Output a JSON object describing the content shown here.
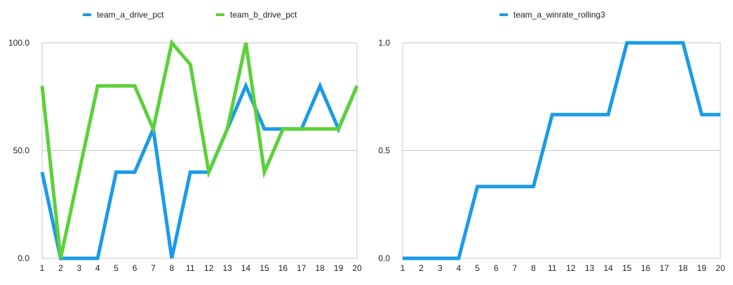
{
  "chart_data": [
    {
      "type": "line",
      "categories": [
        "1",
        "2",
        "3",
        "4",
        "5",
        "6",
        "7",
        "8",
        "11",
        "12",
        "13",
        "14",
        "15",
        "16",
        "17",
        "18",
        "19",
        "20"
      ],
      "ylim": [
        0,
        100
      ],
      "yticks": [
        "0.0",
        "50.0",
        "100.0"
      ],
      "grid": true,
      "legend_position": "top",
      "series": [
        {
          "name": "team_a_drive_pct",
          "color": "#1a9be8",
          "values": [
            40,
            0,
            0,
            0,
            40,
            40,
            60,
            0,
            40,
            40,
            60,
            80,
            60,
            60,
            60,
            80,
            60,
            80
          ]
        },
        {
          "name": "team_b_drive_pct",
          "color": "#5bd13a",
          "values": [
            80,
            0,
            40,
            80,
            80,
            80,
            60,
            100,
            90,
            40,
            60,
            100,
            40,
            60,
            60,
            60,
            60,
            80
          ]
        }
      ]
    },
    {
      "type": "line",
      "categories": [
        "1",
        "2",
        "3",
        "4",
        "5",
        "6",
        "7",
        "8",
        "11",
        "12",
        "13",
        "14",
        "15",
        "16",
        "17",
        "18",
        "19",
        "20"
      ],
      "ylim": [
        0,
        1
      ],
      "yticks": [
        "0.0",
        "0.5",
        "1.0"
      ],
      "grid": true,
      "legend_position": "top",
      "series": [
        {
          "name": "team_a_winrate_rolling3",
          "color": "#1a9be8",
          "values": [
            0,
            0,
            0,
            0,
            0.333,
            0.333,
            0.333,
            0.333,
            0.667,
            0.667,
            0.667,
            0.667,
            1,
            1,
            1,
            1,
            0.667,
            0.667
          ]
        }
      ]
    }
  ]
}
